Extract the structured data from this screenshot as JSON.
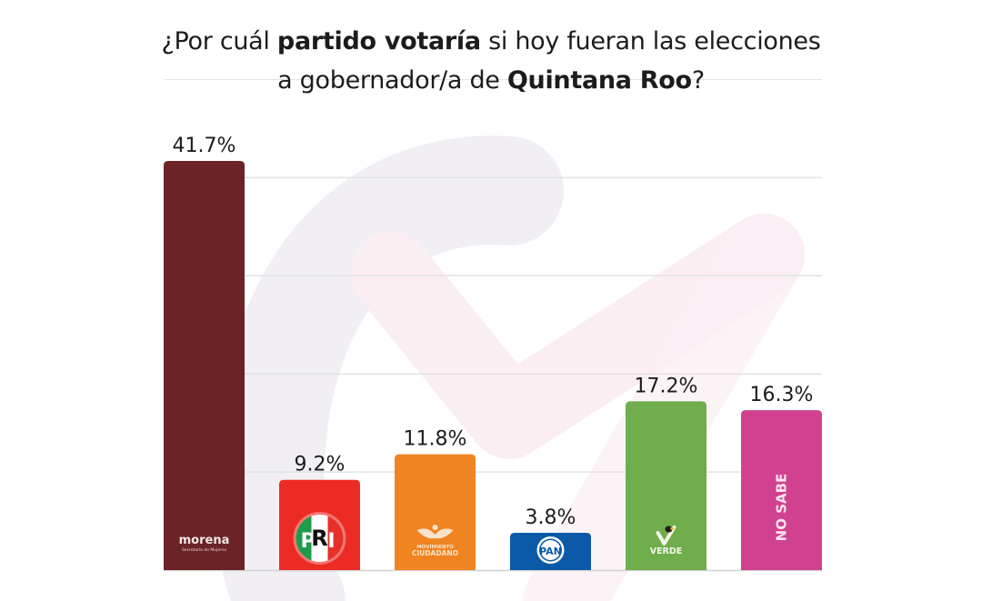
{
  "header": {
    "line1": [
      {
        "text": "¿Por cuál ",
        "bold": false
      },
      {
        "text": "partido votaría",
        "bold": true
      },
      {
        "text": " si hoy fueran las elecciones",
        "bold": false
      }
    ],
    "line2": [
      {
        "text": "a gobernador/a de ",
        "bold": false
      },
      {
        "text": "Quintana Roo",
        "bold": true
      },
      {
        "text": "?",
        "bold": false
      }
    ]
  },
  "chart_data": {
    "type": "bar",
    "title": "¿Por cuál partido votaría si hoy fueran las elecciones a gobernador/a de Quintana Roo?",
    "xlabel": "",
    "ylabel": "",
    "ylim": [
      0,
      41.7
    ],
    "grid": true,
    "gridlines": [
      10,
      20,
      30,
      40
    ],
    "legend": "none",
    "categories": [
      "MORENA",
      "PRI",
      "MOVIMIENTO CIUDADANO",
      "PAN",
      "VERDE",
      "NO SABE"
    ],
    "values": [
      41.7,
      9.2,
      11.8,
      3.8,
      17.2,
      16.3
    ],
    "value_labels": [
      "41.7%",
      "9.2%",
      "11.8%",
      "3.8%",
      "17.2%",
      "16.3%"
    ],
    "colors": [
      "#6b2326",
      "#ec2b24",
      "#f08420",
      "#0b5aa8",
      "#70ad4c",
      "#d0428f"
    ],
    "bar_logos": [
      {
        "kind": "morena",
        "name": "morena",
        "sub": "Secretaría de Mujeres"
      },
      {
        "kind": "pri",
        "name": "PRI"
      },
      {
        "kind": "mc",
        "name": "MOVIMIENTO",
        "sub": "CIUDADANO"
      },
      {
        "kind": "pan",
        "name": "PAN"
      },
      {
        "kind": "verde",
        "name": "VERDE"
      },
      {
        "kind": "nosabe",
        "name": "NO SABE"
      }
    ]
  },
  "colors": {
    "grid": "#e2e2e2",
    "watermark_gray": "#f1eff4",
    "watermark_pink": "#fbeef3",
    "text": "#1c1c1c"
  }
}
